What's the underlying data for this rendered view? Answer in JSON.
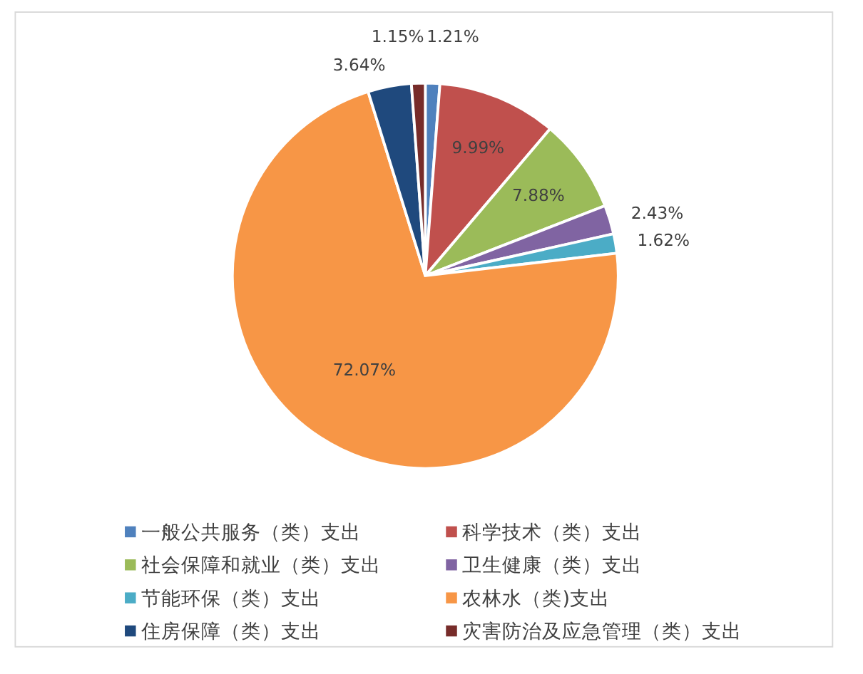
{
  "chart_data": {
    "type": "pie",
    "categories": [
      "一般公共服务（类）支出",
      "科学技术（类）支出",
      "社会保障和就业（类）支出",
      "卫生健康（类）支出",
      "节能环保（类）支出",
      "农林水（类)支出",
      "住房保障（类）支出",
      "灾害防治及应急管理（类）支出"
    ],
    "values": [
      1.21,
      9.99,
      7.88,
      2.43,
      1.62,
      72.07,
      3.64,
      1.15
    ],
    "colors": [
      "#4f81bd",
      "#c0504d",
      "#9bbb59",
      "#8064a2",
      "#4bacc6",
      "#f79646",
      "#1f497d",
      "#772c2a"
    ],
    "value_labels": [
      "1.21%",
      "9.99%",
      "7.88%",
      "2.43%",
      "1.62%",
      "72.07%",
      "3.64%",
      "1.15%"
    ],
    "legend": "bottom"
  }
}
